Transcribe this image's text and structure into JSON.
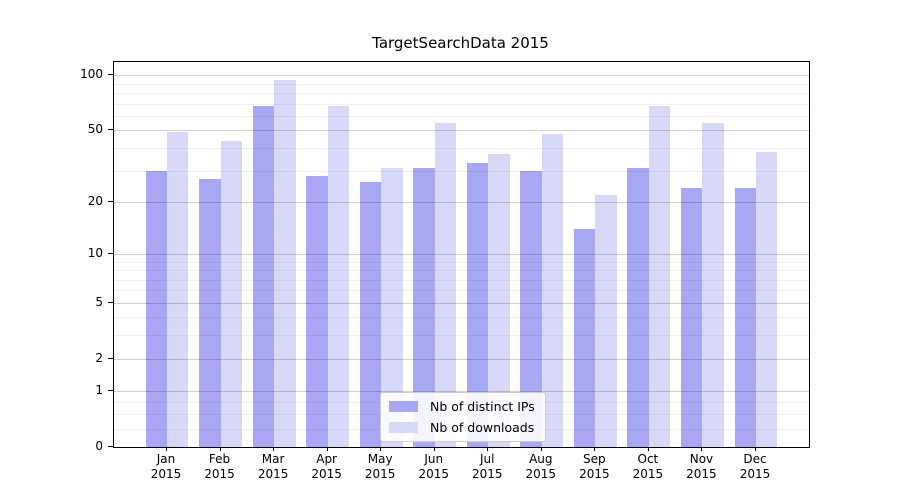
{
  "title": "TargetSearchData 2015",
  "chart_data": {
    "type": "bar",
    "title": "TargetSearchData 2015",
    "categories": [
      "Jan",
      "Feb",
      "Mar",
      "Apr",
      "May",
      "Jun",
      "Jul",
      "Aug",
      "Sep",
      "Oct",
      "Nov",
      "Dec"
    ],
    "category_year": "2015",
    "series": [
      {
        "name": "Nb of distinct IPs",
        "color": "#a7a7f3",
        "values": [
          30,
          27,
          68,
          28,
          26,
          31,
          33,
          30,
          14,
          31,
          24,
          24
        ]
      },
      {
        "name": "Nb of downloads",
        "color": "#d8d8f9",
        "values": [
          49,
          44,
          95,
          68,
          31,
          55,
          37,
          48,
          22,
          68,
          55,
          38
        ]
      }
    ],
    "xlabel": "",
    "ylabel": "",
    "yscale": "log1p",
    "ylim": [
      0,
      118.3
    ],
    "yticks": [
      0,
      1,
      2,
      5,
      10,
      20,
      50,
      100
    ],
    "yticks_minor": [
      0.25,
      0.5,
      0.75,
      3,
      4,
      6,
      7,
      8,
      9,
      30,
      40,
      60,
      70,
      80,
      90
    ],
    "grid": "horizontal",
    "legend_position": "inside lower center"
  }
}
